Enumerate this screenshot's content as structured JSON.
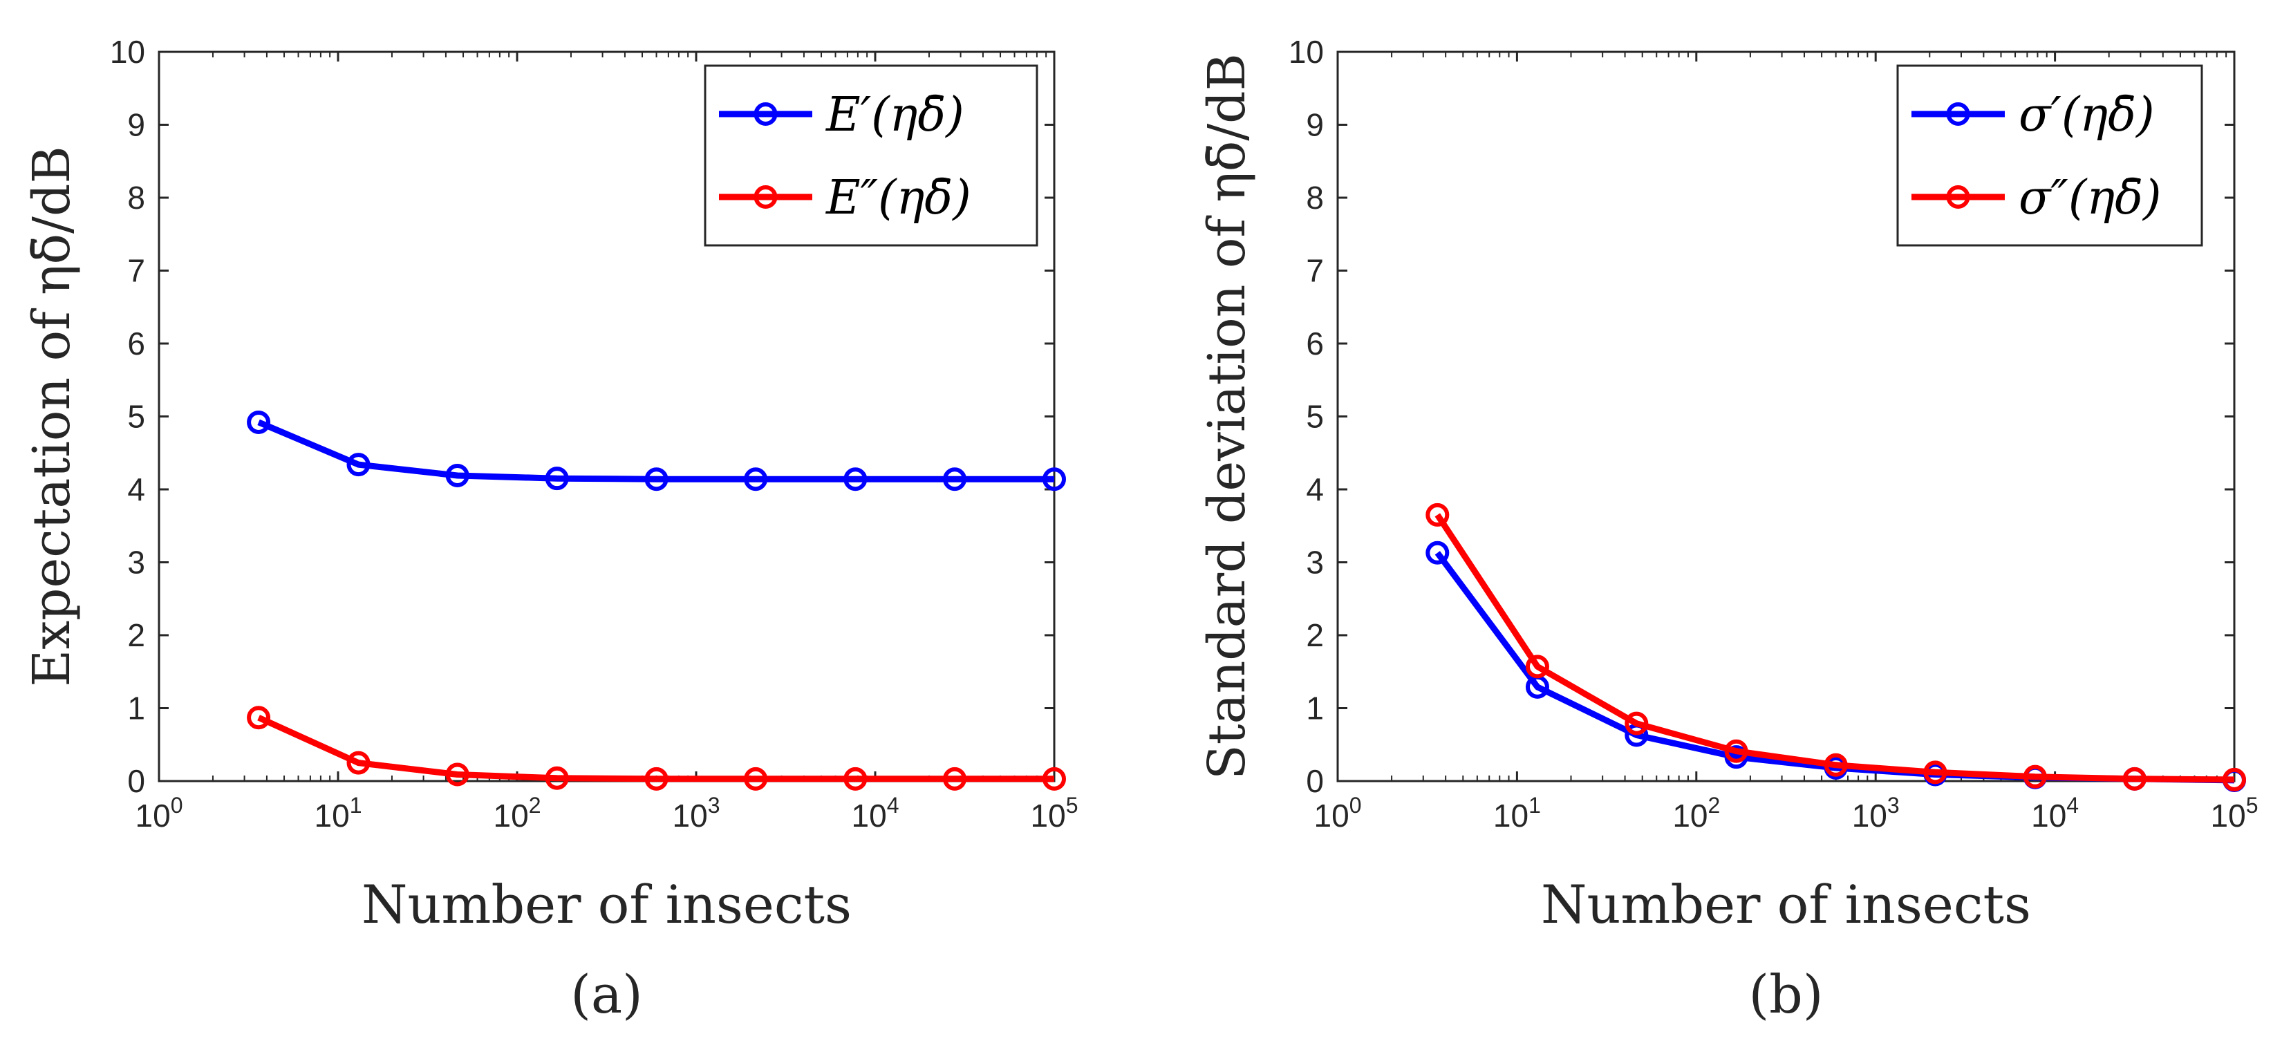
{
  "chart_data": [
    {
      "type": "line",
      "panel_label": "(a)",
      "xscale": "log",
      "xlim": [
        1,
        100000
      ],
      "ylim": [
        0,
        10
      ],
      "grid": false,
      "xlabel": "Number of insects",
      "ylabel": "Expectation of ηδ̄/dB",
      "x_ticks": [
        {
          "base": "10",
          "exp": "0",
          "value": 1
        },
        {
          "base": "10",
          "exp": "1",
          "value": 10
        },
        {
          "base": "10",
          "exp": "2",
          "value": 100
        },
        {
          "base": "10",
          "exp": "3",
          "value": 1000
        },
        {
          "base": "10",
          "exp": "4",
          "value": 10000
        },
        {
          "base": "10",
          "exp": "5",
          "value": 100000
        }
      ],
      "y_ticks": [
        "0",
        "1",
        "2",
        "3",
        "4",
        "5",
        "6",
        "7",
        "8",
        "9",
        "10"
      ],
      "legend_position": "top-right",
      "x": [
        3.6,
        13,
        46.4,
        167,
        600,
        2150,
        7750,
        27800,
        100000
      ],
      "series": [
        {
          "name": "E′(ηδ̄)",
          "color": "#0000ff",
          "values": [
            4.92,
            4.34,
            4.19,
            4.15,
            4.14,
            4.14,
            4.14,
            4.14,
            4.14
          ]
        },
        {
          "name": "E″(ηδ̄)",
          "color": "#ff0000",
          "values": [
            0.87,
            0.25,
            0.09,
            0.04,
            0.03,
            0.03,
            0.03,
            0.03,
            0.03
          ]
        }
      ]
    },
    {
      "type": "line",
      "panel_label": "(b)",
      "xscale": "log",
      "xlim": [
        1,
        100000
      ],
      "ylim": [
        0,
        10
      ],
      "grid": false,
      "xlabel": "Number of insects",
      "ylabel": "Standard deviation of ηδ̄/dB",
      "x_ticks": [
        {
          "base": "10",
          "exp": "0",
          "value": 1
        },
        {
          "base": "10",
          "exp": "1",
          "value": 10
        },
        {
          "base": "10",
          "exp": "2",
          "value": 100
        },
        {
          "base": "10",
          "exp": "3",
          "value": 1000
        },
        {
          "base": "10",
          "exp": "4",
          "value": 10000
        },
        {
          "base": "10",
          "exp": "5",
          "value": 100000
        }
      ],
      "y_ticks": [
        "0",
        "1",
        "2",
        "3",
        "4",
        "5",
        "6",
        "7",
        "8",
        "9",
        "10"
      ],
      "legend_position": "top-right",
      "x": [
        3.6,
        13,
        46.4,
        167,
        600,
        2150,
        7750,
        27800,
        100000
      ],
      "series": [
        {
          "name": "σ′(ηδ̄)",
          "color": "#0000ff",
          "values": [
            3.13,
            1.29,
            0.63,
            0.33,
            0.18,
            0.09,
            0.05,
            0.03,
            0.01
          ]
        },
        {
          "name": "σ″(ηδ̄)",
          "color": "#ff0000",
          "values": [
            3.65,
            1.57,
            0.79,
            0.41,
            0.22,
            0.12,
            0.06,
            0.03,
            0.02
          ]
        }
      ]
    }
  ]
}
